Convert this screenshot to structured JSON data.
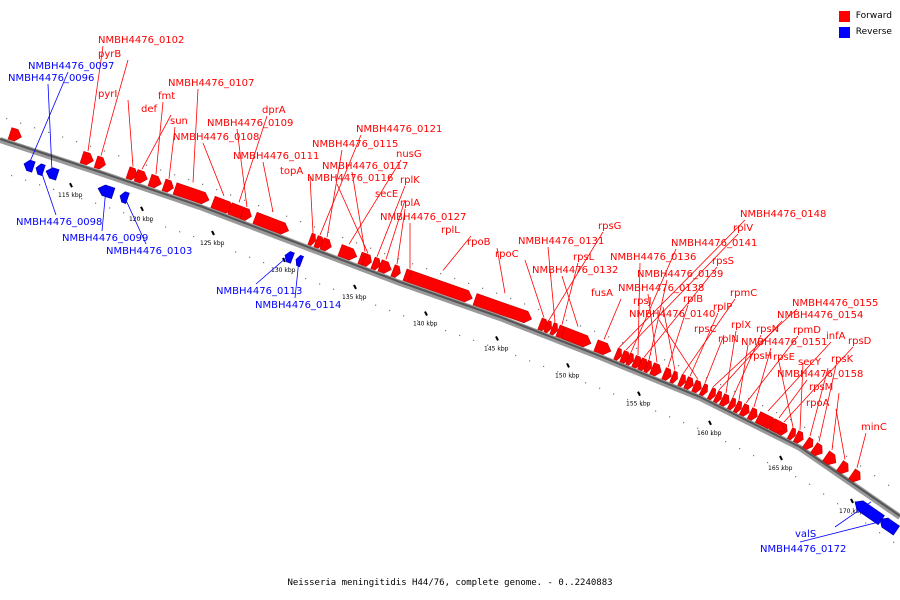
{
  "legend": [
    {
      "label": "Forward",
      "color": "#ff0000"
    },
    {
      "label": "Reverse",
      "color": "#0000ff"
    }
  ],
  "caption": "Neisseria meningitidis H44/76, complete genome. - 0..2240883",
  "colors": {
    "forward": "#ff0000",
    "reverse": "#0000ff",
    "backbone": "#555555"
  },
  "ticks": [
    {
      "label": "115 kbp",
      "kbp": 115
    },
    {
      "label": "120 kbp",
      "kbp": 120
    },
    {
      "label": "125 kbp",
      "kbp": 125
    },
    {
      "label": "130 kbp",
      "kbp": 130
    },
    {
      "label": "135 kbp",
      "kbp": 135
    },
    {
      "label": "140 kbp",
      "kbp": 140
    },
    {
      "label": "145 kbp",
      "kbp": 145
    },
    {
      "label": "150 kbp",
      "kbp": 150
    },
    {
      "label": "155 kbp",
      "kbp": 155
    },
    {
      "label": "160 kbp",
      "kbp": 160
    },
    {
      "label": "165 kbp",
      "kbp": 165
    },
    {
      "label": "170 kbp",
      "kbp": 170
    }
  ],
  "forward_genes": [
    "NMBH4476_0102",
    "pyrB",
    "pyrI",
    "def",
    "fmt",
    "sun",
    "NMBH4476_0107",
    "NMBH4476_0108",
    "dprA",
    "NMBH4476_0109",
    "NMBH4476_0111",
    "topA",
    "NMBH4476_0121",
    "NMBH4476_0115",
    "nusG",
    "NMBH4476_0117",
    "NMBH4476_0116",
    "rplK",
    "secE",
    "rplA",
    "NMBH4476_0127",
    "rplL",
    "rpoB",
    "rpoC",
    "rpsG",
    "NMBH4476_0131",
    "rpsL",
    "NMBH4476_0132",
    "fusA",
    "NMBH4476_0148",
    "rplV",
    "NMBH4476_0141",
    "NMBH4476_0136",
    "rpsS",
    "NMBH4476_0139",
    "NMBH4476_0138",
    "rplB",
    "rpsJ",
    "rpmC",
    "rplP",
    "NMBH4476_0140",
    "rpsC",
    "NMBH4476_0155",
    "NMBH4476_0154",
    "rplX",
    "rpsN",
    "rplN",
    "rpmD",
    "NMBH4476_0151",
    "infA",
    "rpsD",
    "rpsH",
    "rpsE",
    "secY",
    "rpsK",
    "NMBH4476_0158",
    "rpsM",
    "rpoA",
    "minC"
  ],
  "reverse_genes": [
    "NMBH4476_0097",
    "NMBH4476_0096",
    "NMBH4476_0098",
    "NMBH4476_0099",
    "NMBH4476_0103",
    "NMBH4476_0113",
    "NMBH4476_0114",
    "valS",
    "NMBH4476_0172"
  ]
}
